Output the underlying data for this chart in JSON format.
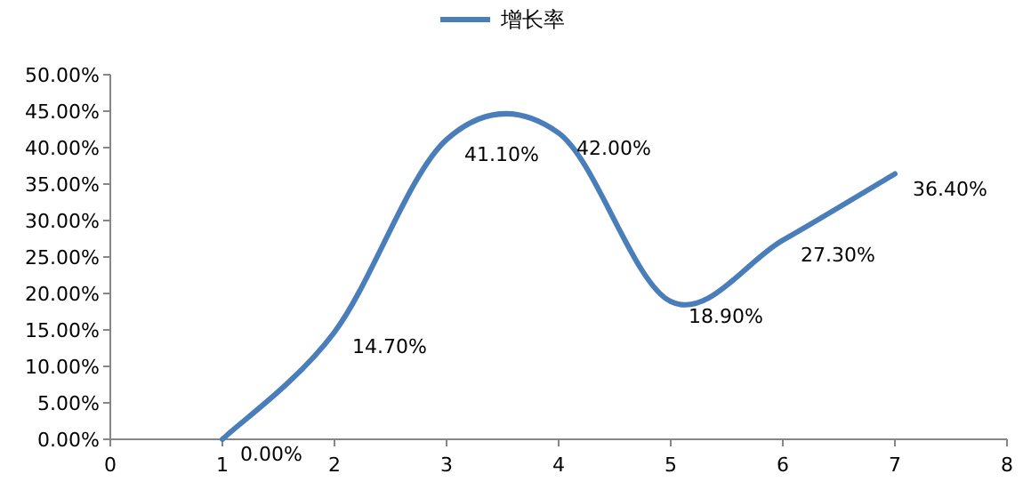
{
  "chart_data": {
    "type": "line",
    "x": [
      1,
      2,
      3,
      4,
      5,
      6,
      7
    ],
    "series": [
      {
        "name": "增长率",
        "color": "#4a7ebb",
        "values": [
          0,
          14.7,
          41.1,
          42.0,
          18.9,
          27.3,
          36.4
        ],
        "value_labels": [
          "0.00%",
          "14.70%",
          "41.10%",
          "42.00%",
          "18.90%",
          "27.30%",
          "36.40%"
        ]
      }
    ],
    "xlim": [
      0,
      8
    ],
    "xticks": [
      0,
      1,
      2,
      3,
      4,
      5,
      6,
      7,
      8
    ],
    "ylim": [
      0,
      50
    ],
    "yticks": [
      {
        "value": 0,
        "label": "0.00%"
      },
      {
        "value": 5,
        "label": "5.00%"
      },
      {
        "value": 10,
        "label": "10.00%"
      },
      {
        "value": 15,
        "label": "15.00%"
      },
      {
        "value": 20,
        "label": "20.00%"
      },
      {
        "value": 25,
        "label": "25.00%"
      },
      {
        "value": 30,
        "label": "30.00%"
      },
      {
        "value": 35,
        "label": "35.00%"
      },
      {
        "value": 40,
        "label": "40.00%"
      },
      {
        "value": 45,
        "label": "45.00%"
      },
      {
        "value": 50,
        "label": "50.00%"
      }
    ],
    "legend": "top",
    "grid": false,
    "marker": "none",
    "line_style": "solid"
  }
}
